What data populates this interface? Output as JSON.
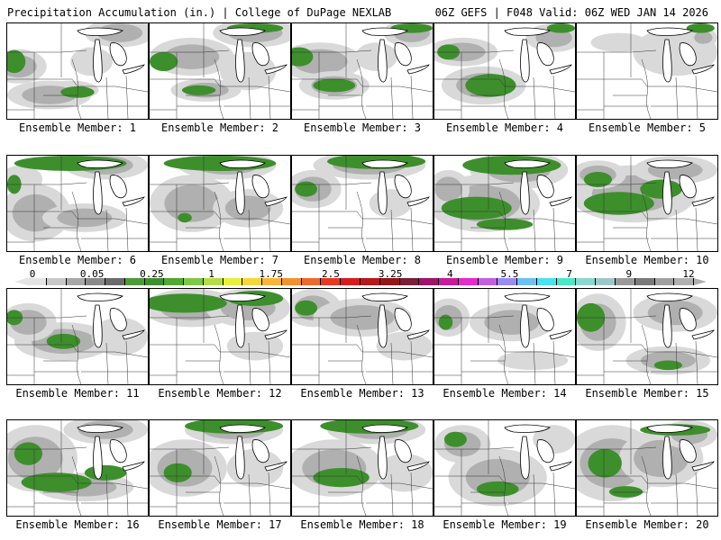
{
  "header": {
    "title": "Precipitation Accumulation (in.) | College of DuPage NEXLAB",
    "run_info": "06Z GEFS | F048 Valid: 06Z WED JAN 14 2026"
  },
  "panels": [
    {
      "label": "Ensemble Member: 1",
      "blobs": [
        [
          0.08,
          0.45,
          0.2,
          0.18,
          1
        ],
        [
          0.45,
          0.7,
          0.2,
          0.1,
          2
        ],
        [
          0.3,
          0.75,
          0.3,
          0.15,
          1
        ],
        [
          0.8,
          0.1,
          0.25,
          0.15,
          1
        ],
        [
          0.6,
          0.4,
          0.15,
          0.15,
          0
        ]
      ],
      "green": [
        [
          0.5,
          0.72,
          0.12,
          0.06
        ],
        [
          0.05,
          0.4,
          0.08,
          0.12
        ]
      ]
    },
    {
      "label": "Ensemble Member: 2",
      "blobs": [
        [
          0.3,
          0.35,
          0.3,
          0.2,
          1
        ],
        [
          0.4,
          0.7,
          0.25,
          0.12,
          1
        ],
        [
          0.75,
          0.1,
          0.3,
          0.15,
          1
        ],
        [
          0.7,
          0.5,
          0.2,
          0.2,
          0
        ]
      ],
      "green": [
        [
          0.35,
          0.7,
          0.12,
          0.05
        ],
        [
          0.1,
          0.4,
          0.1,
          0.1
        ],
        [
          0.75,
          0.05,
          0.2,
          0.05
        ]
      ]
    },
    {
      "label": "Ensemble Member: 3",
      "blobs": [
        [
          0.2,
          0.4,
          0.3,
          0.2,
          1
        ],
        [
          0.3,
          0.65,
          0.25,
          0.15,
          2
        ],
        [
          0.85,
          0.1,
          0.2,
          0.15,
          1
        ],
        [
          0.6,
          0.35,
          0.15,
          0.15,
          0
        ]
      ],
      "green": [
        [
          0.3,
          0.65,
          0.15,
          0.07
        ],
        [
          0.05,
          0.35,
          0.1,
          0.1
        ],
        [
          0.85,
          0.05,
          0.15,
          0.05
        ]
      ]
    },
    {
      "label": "Ensemble Member: 4",
      "blobs": [
        [
          0.35,
          0.65,
          0.3,
          0.2,
          2
        ],
        [
          0.2,
          0.3,
          0.25,
          0.15,
          1
        ],
        [
          0.85,
          0.15,
          0.2,
          0.15,
          1
        ]
      ],
      "green": [
        [
          0.4,
          0.65,
          0.18,
          0.12
        ],
        [
          0.1,
          0.3,
          0.08,
          0.08
        ],
        [
          0.9,
          0.05,
          0.1,
          0.05
        ]
      ]
    },
    {
      "label": "Ensemble Member: 5",
      "blobs": [
        [
          0.7,
          0.3,
          0.3,
          0.25,
          0
        ],
        [
          0.3,
          0.2,
          0.2,
          0.1,
          0
        ],
        [
          0.9,
          0.15,
          0.1,
          0.1,
          1
        ]
      ],
      "green": [
        [
          0.88,
          0.05,
          0.1,
          0.05
        ]
      ]
    },
    {
      "label": "Ensemble Member: 6",
      "blobs": [
        [
          0.2,
          0.6,
          0.25,
          0.3,
          1
        ],
        [
          0.55,
          0.65,
          0.3,
          0.15,
          1
        ],
        [
          0.7,
          0.1,
          0.3,
          0.15,
          1
        ],
        [
          0.1,
          0.25,
          0.15,
          0.15,
          0
        ]
      ],
      "green": [
        [
          0.45,
          0.08,
          0.4,
          0.08
        ],
        [
          0.05,
          0.3,
          0.05,
          0.1
        ]
      ]
    },
    {
      "label": "Ensemble Member: 7",
      "blobs": [
        [
          0.3,
          0.5,
          0.3,
          0.3,
          1
        ],
        [
          0.7,
          0.55,
          0.25,
          0.2,
          1
        ],
        [
          0.55,
          0.1,
          0.35,
          0.15,
          1
        ]
      ],
      "green": [
        [
          0.5,
          0.08,
          0.4,
          0.08
        ],
        [
          0.25,
          0.65,
          0.05,
          0.05
        ]
      ]
    },
    {
      "label": "Ensemble Member: 8",
      "blobs": [
        [
          0.15,
          0.35,
          0.2,
          0.2,
          1
        ],
        [
          0.55,
          0.1,
          0.4,
          0.15,
          1
        ],
        [
          0.7,
          0.5,
          0.15,
          0.15,
          0
        ]
      ],
      "green": [
        [
          0.1,
          0.35,
          0.08,
          0.08
        ],
        [
          0.6,
          0.06,
          0.35,
          0.08
        ]
      ]
    },
    {
      "label": "Ensemble Member: 9",
      "blobs": [
        [
          0.35,
          0.5,
          0.4,
          0.3,
          1
        ],
        [
          0.6,
          0.15,
          0.35,
          0.2,
          1
        ],
        [
          0.1,
          0.35,
          0.15,
          0.2,
          1
        ]
      ],
      "green": [
        [
          0.3,
          0.55,
          0.25,
          0.12
        ],
        [
          0.55,
          0.1,
          0.35,
          0.1
        ],
        [
          0.5,
          0.72,
          0.2,
          0.06
        ]
      ]
    },
    {
      "label": "Ensemble Member: 10",
      "blobs": [
        [
          0.4,
          0.4,
          0.45,
          0.3,
          1
        ],
        [
          0.15,
          0.2,
          0.2,
          0.15,
          1
        ],
        [
          0.7,
          0.15,
          0.3,
          0.15,
          1
        ]
      ],
      "green": [
        [
          0.3,
          0.5,
          0.25,
          0.12
        ],
        [
          0.6,
          0.35,
          0.15,
          0.1
        ],
        [
          0.15,
          0.25,
          0.1,
          0.08
        ]
      ]
    },
    {
      "label": "Ensemble Member: 11",
      "blobs": [
        [
          0.4,
          0.55,
          0.35,
          0.2,
          2
        ],
        [
          0.15,
          0.35,
          0.2,
          0.2,
          1
        ],
        [
          0.8,
          0.5,
          0.2,
          0.2,
          0
        ]
      ],
      "green": [
        [
          0.4,
          0.55,
          0.12,
          0.08
        ],
        [
          0.05,
          0.3,
          0.06,
          0.08
        ]
      ]
    },
    {
      "label": "Ensemble Member: 12",
      "blobs": [
        [
          0.3,
          0.2,
          0.35,
          0.2,
          1
        ],
        [
          0.7,
          0.2,
          0.3,
          0.2,
          1
        ],
        [
          0.75,
          0.6,
          0.2,
          0.15,
          0
        ]
      ],
      "green": [
        [
          0.25,
          0.15,
          0.3,
          0.1
        ],
        [
          0.75,
          0.1,
          0.2,
          0.08
        ]
      ]
    },
    {
      "label": "Ensemble Member: 13",
      "blobs": [
        [
          0.15,
          0.2,
          0.2,
          0.2,
          1
        ],
        [
          0.5,
          0.3,
          0.35,
          0.2,
          1
        ],
        [
          0.8,
          0.6,
          0.2,
          0.15,
          0
        ]
      ],
      "green": [
        [
          0.1,
          0.2,
          0.08,
          0.08
        ]
      ]
    },
    {
      "label": "Ensemble Member: 14",
      "blobs": [
        [
          0.1,
          0.3,
          0.15,
          0.2,
          1
        ],
        [
          0.55,
          0.35,
          0.3,
          0.2,
          1
        ],
        [
          0.7,
          0.75,
          0.25,
          0.1,
          0
        ]
      ],
      "green": [
        [
          0.08,
          0.35,
          0.05,
          0.08
        ]
      ]
    },
    {
      "label": "Ensemble Member: 15",
      "blobs": [
        [
          0.15,
          0.35,
          0.2,
          0.3,
          1
        ],
        [
          0.65,
          0.75,
          0.3,
          0.15,
          1
        ],
        [
          0.7,
          0.25,
          0.3,
          0.2,
          1
        ]
      ],
      "green": [
        [
          0.1,
          0.3,
          0.1,
          0.15
        ],
        [
          0.65,
          0.8,
          0.1,
          0.05
        ]
      ]
    },
    {
      "label": "Ensemble Member: 16",
      "blobs": [
        [
          0.2,
          0.4,
          0.3,
          0.35,
          1
        ],
        [
          0.55,
          0.7,
          0.35,
          0.15,
          1
        ],
        [
          0.7,
          0.1,
          0.3,
          0.15,
          1
        ]
      ],
      "green": [
        [
          0.35,
          0.65,
          0.25,
          0.1
        ],
        [
          0.7,
          0.55,
          0.15,
          0.08
        ],
        [
          0.15,
          0.35,
          0.1,
          0.12
        ]
      ]
    },
    {
      "label": "Ensemble Member: 17",
      "blobs": [
        [
          0.25,
          0.5,
          0.3,
          0.3,
          1
        ],
        [
          0.6,
          0.1,
          0.35,
          0.15,
          1
        ],
        [
          0.75,
          0.5,
          0.2,
          0.2,
          0
        ]
      ],
      "green": [
        [
          0.2,
          0.55,
          0.1,
          0.1
        ],
        [
          0.6,
          0.06,
          0.35,
          0.08
        ]
      ]
    },
    {
      "label": "Ensemble Member: 18",
      "blobs": [
        [
          0.3,
          0.5,
          0.35,
          0.3,
          1
        ],
        [
          0.6,
          0.1,
          0.35,
          0.15,
          1
        ],
        [
          0.8,
          0.55,
          0.2,
          0.2,
          0
        ]
      ],
      "green": [
        [
          0.35,
          0.6,
          0.2,
          0.1
        ],
        [
          0.55,
          0.06,
          0.35,
          0.08
        ]
      ]
    },
    {
      "label": "Ensemble Member: 19",
      "blobs": [
        [
          0.45,
          0.6,
          0.35,
          0.3,
          1
        ],
        [
          0.2,
          0.25,
          0.2,
          0.2,
          1
        ],
        [
          0.85,
          0.2,
          0.15,
          0.15,
          0
        ]
      ],
      "green": [
        [
          0.45,
          0.72,
          0.15,
          0.08
        ],
        [
          0.15,
          0.2,
          0.08,
          0.08
        ]
      ]
    },
    {
      "label": "Ensemble Member: 20",
      "blobs": [
        [
          0.25,
          0.45,
          0.35,
          0.4,
          1
        ],
        [
          0.6,
          0.4,
          0.3,
          0.3,
          1
        ],
        [
          0.8,
          0.15,
          0.2,
          0.15,
          1
        ]
      ],
      "green": [
        [
          0.2,
          0.45,
          0.12,
          0.15
        ],
        [
          0.35,
          0.75,
          0.12,
          0.06
        ],
        [
          0.7,
          0.1,
          0.25,
          0.06
        ]
      ]
    }
  ],
  "colorbar": {
    "tick_labels": [
      "0",
      "0.05",
      "0.25",
      "1",
      "1.75",
      "2.5",
      "3.25",
      "4",
      "5.5",
      "7",
      "9",
      "12"
    ],
    "colors": [
      "#e4e4e4",
      "#c8c8c8",
      "#a8a8a8",
      "#8a8a8a",
      "#6a6a6a",
      "#4e9a3a",
      "#3f8f2f",
      "#52a830",
      "#7ec845",
      "#b6dc45",
      "#e8ef3c",
      "#f7d63a",
      "#f7b637",
      "#f2922f",
      "#ec6b2c",
      "#e53a25",
      "#d61d1d",
      "#b5191b",
      "#931518",
      "#7a1e3a",
      "#a0146b",
      "#c91a9c",
      "#e42ccc",
      "#c45fe0",
      "#9a8cf0",
      "#6ec0f2",
      "#4ae2f0",
      "#49e8c6",
      "#8ad8d0",
      "#9ec8c8",
      "#9a9a9a",
      "#7a7a7a",
      "#a0a0a0",
      "#b0b0b0"
    ]
  },
  "map_colors": {
    "light_gray": "#d9d9d9",
    "mid_gray": "#b0b0b0",
    "dark_gray": "#8c8c8c",
    "green": "#3d8f2c",
    "border": "#000000"
  }
}
